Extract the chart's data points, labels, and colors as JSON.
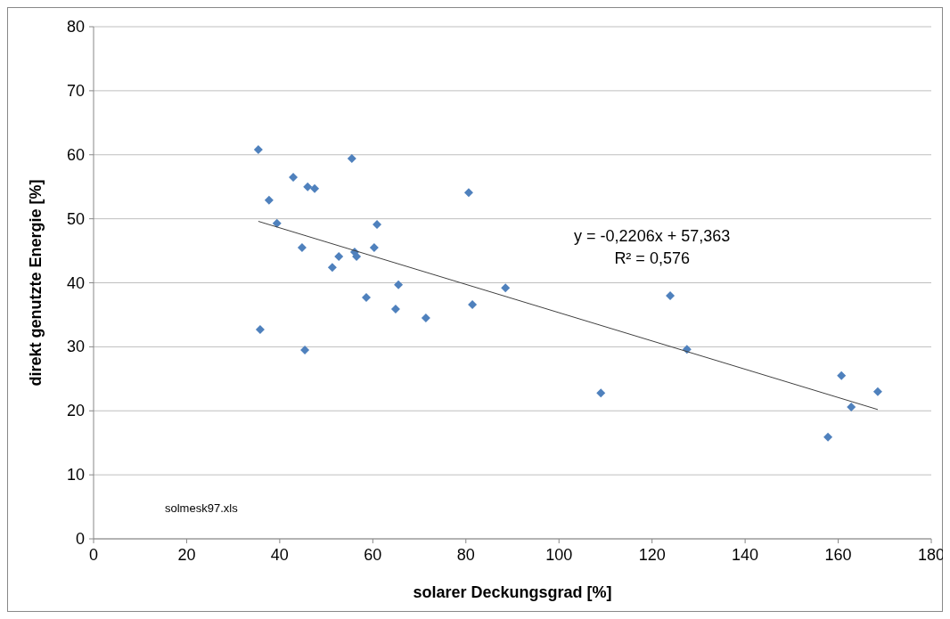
{
  "chart_data": {
    "type": "scatter",
    "xlabel": "solarer Deckungsgrad [%]",
    "ylabel": "direkt genutzte Energie [%]",
    "xlim": [
      0,
      180
    ],
    "xticks": [
      0,
      20,
      40,
      60,
      80,
      100,
      120,
      140,
      160,
      180
    ],
    "ylim": [
      0,
      80
    ],
    "yticks": [
      0,
      10,
      20,
      30,
      40,
      50,
      60,
      70,
      80
    ],
    "grid": "y",
    "marker": "diamond",
    "series": [
      {
        "color": "#4f81bd",
        "x": [
          35.4,
          37.7,
          39.4,
          42.9,
          46.0,
          47.5,
          44.8,
          35.8,
          45.4,
          51.3,
          52.7,
          55.5,
          56.1,
          56.5,
          60.9,
          60.3,
          58.6,
          65.5,
          64.9,
          71.4,
          80.6,
          81.4,
          88.5,
          109.0,
          123.9,
          127.5,
          157.8,
          160.7,
          162.8,
          168.5
        ],
        "values": [
          60.8,
          52.9,
          49.3,
          56.5,
          55.0,
          54.7,
          45.5,
          32.7,
          29.5,
          42.4,
          44.1,
          59.4,
          44.8,
          44.1,
          49.1,
          45.5,
          37.7,
          39.7,
          35.9,
          34.5,
          54.1,
          36.6,
          39.2,
          22.8,
          38.0,
          29.6,
          15.9,
          25.5,
          20.6,
          23.0
        ]
      },
      {
        "type": "line",
        "color": "#404040",
        "marker": "none",
        "line_style": "solid",
        "x": [
          35.4,
          168.5
        ],
        "values": [
          49.6,
          20.2
        ]
      }
    ],
    "annotations": [
      "y = -0,2206x + 57,363",
      "R² = 0,576",
      "solmesk97.xls"
    ]
  }
}
